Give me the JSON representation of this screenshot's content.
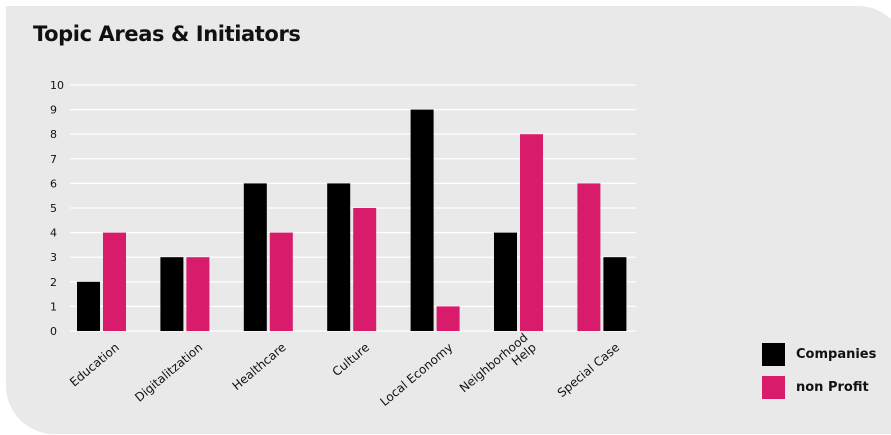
{
  "chart_data": {
    "type": "bar",
    "title": "Topic Areas & Initiators",
    "categories": [
      [
        "Education"
      ],
      [
        "Digitalitzation"
      ],
      [
        "Healthcare"
      ],
      [
        "Culture"
      ],
      [
        "Local Economy"
      ],
      [
        "Neighborhood",
        "Help"
      ],
      [
        "Special Case"
      ]
    ],
    "series": [
      {
        "name": "Companies",
        "values": [
          2,
          3,
          6,
          6,
          9,
          4,
          3
        ],
        "color": "#000000"
      },
      {
        "name": "non Profit",
        "values": [
          4,
          3,
          4,
          5,
          1,
          8,
          6
        ],
        "color": "#d81b6a"
      }
    ],
    "bar_order": [
      [
        "Companies",
        "non Profit"
      ],
      [
        "Companies",
        "non Profit"
      ],
      [
        "Companies",
        "non Profit"
      ],
      [
        "Companies",
        "non Profit"
      ],
      [
        "Companies",
        "non Profit"
      ],
      [
        "Companies",
        "non Profit"
      ],
      [
        "non Profit",
        "Companies"
      ]
    ],
    "yticks": [
      "0",
      "1",
      "2",
      "3",
      "4",
      "5",
      "6",
      "7",
      "8",
      "9",
      "10"
    ],
    "ylim": [
      0,
      10
    ],
    "grid": true,
    "legend_position": "bottom-right"
  }
}
